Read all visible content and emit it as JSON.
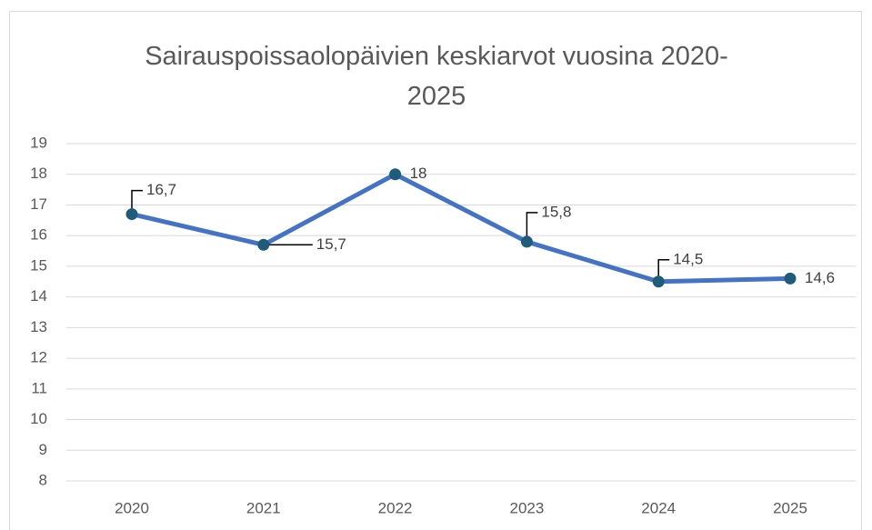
{
  "chart_data": {
    "type": "line",
    "title": "Sairauspoissaolopäivien keskiarvot vuosina 2020-2025",
    "categories": [
      "2020",
      "2021",
      "2022",
      "2023",
      "2024",
      "2025"
    ],
    "values": [
      16.7,
      15.7,
      18,
      15.8,
      14.5,
      14.6
    ],
    "value_labels": [
      "16,7",
      "15,7",
      "18",
      "15,8",
      "14,5",
      "14,6"
    ],
    "color": "#4472c4",
    "marker_color": "#1f5c7a",
    "ylim": [
      8,
      19
    ],
    "yticks": [
      8,
      9,
      10,
      11,
      12,
      13,
      14,
      15,
      16,
      17,
      18,
      19
    ],
    "grid": true
  }
}
